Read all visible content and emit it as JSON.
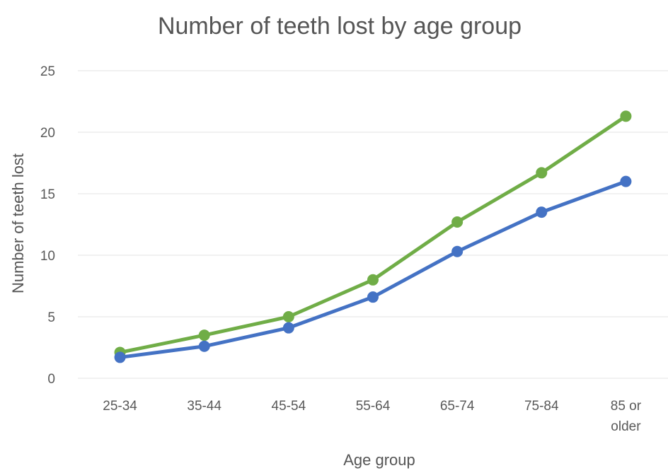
{
  "chart_data": {
    "type": "line",
    "title": "Number of teeth lost by age group",
    "xlabel": "Age group",
    "ylabel": "Number of teeth lost",
    "categories": [
      "25-34",
      "35-44",
      "45-54",
      "55-64",
      "65-74",
      "75-84",
      "85 or older"
    ],
    "ylim": [
      0,
      25
    ],
    "yticks": [
      "0",
      "5",
      "10",
      "15",
      "20",
      "25"
    ],
    "grid": true,
    "legend": "none",
    "series": [
      {
        "color": "#70ad47",
        "values": [
          2.1,
          3.5,
          5.0,
          8.0,
          12.7,
          16.7,
          21.3
        ]
      },
      {
        "color": "#4472c4",
        "values": [
          1.7,
          2.6,
          4.1,
          6.6,
          10.3,
          13.5,
          16.0
        ]
      }
    ]
  }
}
